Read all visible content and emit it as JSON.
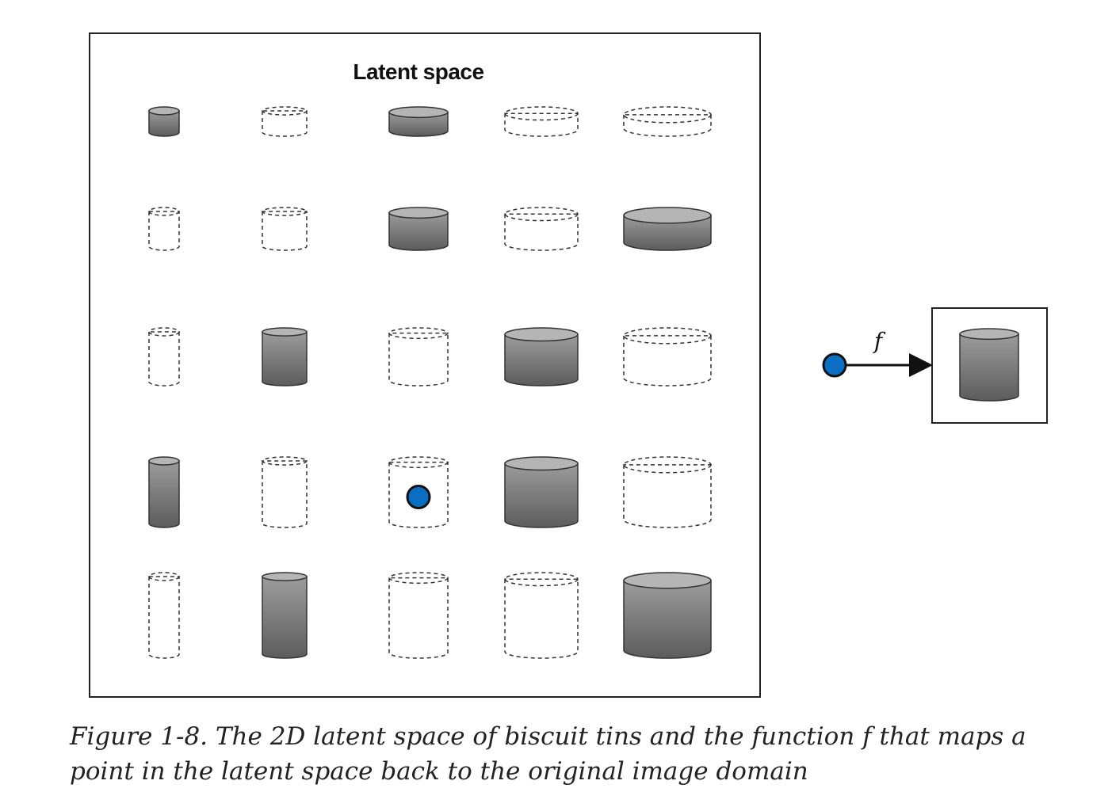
{
  "latent_space": {
    "title": "Latent space",
    "grid_rows": 5,
    "grid_cols": 5,
    "tins": [
      [
        "solid",
        "dashed",
        "solid",
        "dashed",
        "dashed"
      ],
      [
        "dashed",
        "dashed",
        "solid",
        "dashed",
        "solid"
      ],
      [
        "dashed",
        "solid",
        "dashed",
        "solid",
        "dashed"
      ],
      [
        "solid",
        "dashed",
        "dashed",
        "solid",
        "dashed"
      ],
      [
        "dashed",
        "solid",
        "dashed",
        "dashed",
        "solid"
      ]
    ],
    "sampled_point": {
      "row": 4,
      "col": 3
    }
  },
  "mapping": {
    "function_label": "f",
    "output_tin_style": "solid"
  },
  "colors": {
    "point_fill": "#0a6ec2",
    "tin_top": "#b5b5b5",
    "tin_body_light": "#9a9a9a",
    "tin_body_dark": "#5a5a5a",
    "outline": "#222222"
  },
  "caption": "Figure 1-8. The 2D latent space of biscuit tins and the function f that maps a point in the latent space back to the original image domain"
}
